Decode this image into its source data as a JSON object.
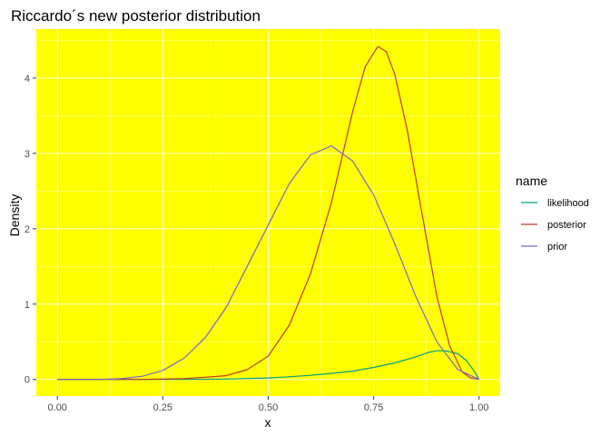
{
  "chart_data": {
    "type": "line",
    "title": "Riccardo´s new posterior distribution",
    "xlabel": "x",
    "ylabel": "Density",
    "xlim": [
      -0.05,
      1.05
    ],
    "ylim": [
      -0.22,
      4.65
    ],
    "x_ticks": [
      0.0,
      0.25,
      0.5,
      0.75,
      1.0
    ],
    "x_tick_labels": [
      "0.00",
      "0.25",
      "0.50",
      "0.75",
      "1.00"
    ],
    "y_ticks": [
      0,
      1,
      2,
      3,
      4
    ],
    "y_tick_labels": [
      "0",
      "1",
      "2",
      "3",
      "4"
    ],
    "grid": true,
    "panel_background": "#ffff00",
    "legend": {
      "title": "name",
      "placement": "right"
    },
    "series": [
      {
        "name": "likelihood",
        "color": "#00a087",
        "x": [
          0.0,
          0.1,
          0.2,
          0.3,
          0.4,
          0.5,
          0.55,
          0.6,
          0.65,
          0.7,
          0.75,
          0.8,
          0.85,
          0.88,
          0.9,
          0.92,
          0.95,
          0.97,
          0.99,
          1.0
        ],
        "y": [
          0.0,
          0.0,
          0.0,
          0.0,
          0.005,
          0.02,
          0.035,
          0.055,
          0.08,
          0.11,
          0.16,
          0.22,
          0.3,
          0.36,
          0.38,
          0.38,
          0.34,
          0.25,
          0.1,
          0.0
        ]
      },
      {
        "name": "posterior",
        "color": "#c0392b",
        "x": [
          0.0,
          0.2,
          0.3,
          0.35,
          0.4,
          0.45,
          0.5,
          0.55,
          0.6,
          0.65,
          0.7,
          0.73,
          0.76,
          0.78,
          0.8,
          0.83,
          0.86,
          0.9,
          0.93,
          0.96,
          0.98,
          1.0
        ],
        "y": [
          0.0,
          0.0,
          0.01,
          0.03,
          0.05,
          0.13,
          0.31,
          0.72,
          1.4,
          2.35,
          3.55,
          4.15,
          4.42,
          4.35,
          4.05,
          3.3,
          2.35,
          1.1,
          0.45,
          0.1,
          0.02,
          0.0
        ]
      },
      {
        "name": "prior",
        "color": "#7b68c9",
        "x": [
          0.0,
          0.1,
          0.15,
          0.2,
          0.25,
          0.3,
          0.35,
          0.4,
          0.45,
          0.5,
          0.55,
          0.6,
          0.65,
          0.7,
          0.75,
          0.8,
          0.85,
          0.9,
          0.95,
          1.0
        ],
        "y": [
          0.0,
          0.002,
          0.01,
          0.04,
          0.12,
          0.28,
          0.55,
          0.95,
          1.5,
          2.05,
          2.6,
          2.98,
          3.1,
          2.9,
          2.45,
          1.8,
          1.1,
          0.5,
          0.13,
          0.0
        ]
      }
    ]
  }
}
